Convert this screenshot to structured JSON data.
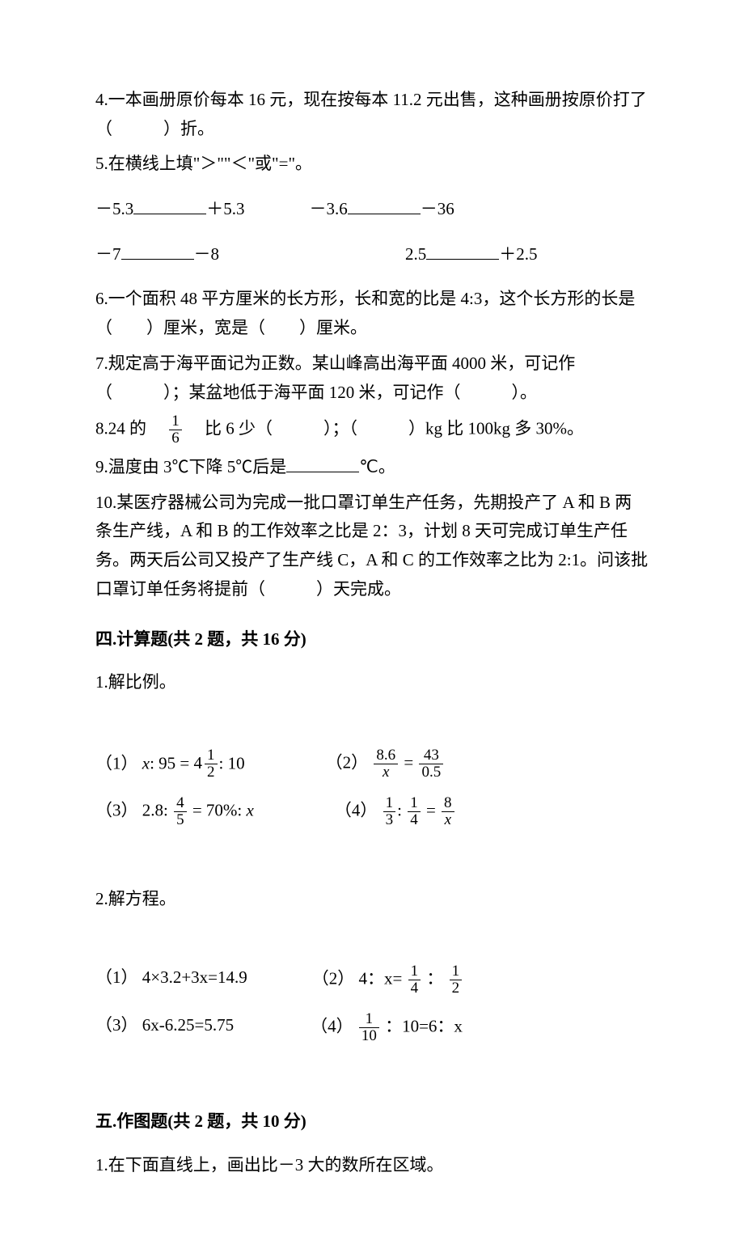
{
  "q4": "4.一本画册原价每本 16 元，现在按每本 11.2 元出售，这种画册按原价打了（　　　）折。",
  "q5_intro": "5.在横线上填\"＞\"\"＜\"或\"=\"。",
  "q5_a_l": "－5.3",
  "q5_a_r": "＋5.3",
  "q5_b_l": "－3.6",
  "q5_b_r": "－36",
  "q5_c_l": "－7",
  "q5_c_r": "－8",
  "q5_d_l": "2.5",
  "q5_d_r": "＋2.5",
  "q6": "6.一个面积 48 平方厘米的长方形，长和宽的比是 4:3，这个长方形的长是（　　）厘米，宽是（　　）厘米。",
  "q7": "7.规定高于海平面记为正数。某山峰高出海平面 4000 米，可记作（　　　）；某盆地低于海平面 120 米，可记作（　　　）。",
  "q8_a": "8.24 的　",
  "q8_frac_num": "1",
  "q8_frac_den": "6",
  "q8_b": "　比 6 少（　　　）；（　　　）kg 比 100kg 多 30%。",
  "q9_a": "9.温度由 3℃下降 5℃后是",
  "q9_b": "℃。",
  "q10": "10.某医疗器械公司为完成一批口罩订单生产任务，先期投产了 A 和 B 两条生产线，A 和 B 的工作效率之比是 2：3，计划 8 天可完成订单生产任务。两天后公司又投产了生产线 C，A 和 C 的工作效率之比为 2:1。问该批口罩订单任务将提前（　　　）天完成。",
  "sec4_title": "四.计算题(共 2 题，共 16 分)",
  "s4_q1": "1.解比例。",
  "s4_q1_1_label": "（1）",
  "s4_q1_1_expr_a": ": 95 = ",
  "s4_q1_1_mixed_whole": "4",
  "s4_q1_1_mixed_num": "1",
  "s4_q1_1_mixed_den": "2",
  "s4_q1_1_expr_b": ": 10",
  "s4_q1_2_label": "（2）",
  "s4_q1_2_f1_num": "8.6",
  "s4_q1_2_f1_den": "x",
  "s4_q1_2_eq": " = ",
  "s4_q1_2_f2_num": "43",
  "s4_q1_2_f2_den": "0.5",
  "s4_q1_3_label": "（3）",
  "s4_q1_3_a": "2.8: ",
  "s4_q1_3_fnum": "4",
  "s4_q1_3_fden": "5",
  "s4_q1_3_b": " = 70%: ",
  "s4_q1_4_label": "（4）",
  "s4_q1_4_f1n": "1",
  "s4_q1_4_f1d": "3",
  "s4_q1_4_colon": ": ",
  "s4_q1_4_f2n": "1",
  "s4_q1_4_f2d": "4",
  "s4_q1_4_eq": " = ",
  "s4_q1_4_f3n": "8",
  "s4_q1_4_f3d": "x",
  "s4_q2": "2.解方程。",
  "s4_q2_1_label": "（1）",
  "s4_q2_1_expr": "4×3.2+3x=14.9",
  "s4_q2_2_label": "（2）",
  "s4_q2_2_a": "4：x= ",
  "s4_q2_2_f1n": "1",
  "s4_q2_2_f1d": "4",
  "s4_q2_2_b": " ： ",
  "s4_q2_2_f2n": "1",
  "s4_q2_2_f2d": "2",
  "s4_q2_3_label": "（3）",
  "s4_q2_3_expr": "6x-6.25=5.75",
  "s4_q2_4_label": "（4）",
  "s4_q2_4_f1n": "1",
  "s4_q2_4_f1d": "10",
  "s4_q2_4_b": " ：10=6：x",
  "sec5_title": "五.作图题(共 2 题，共 10 分)",
  "s5_q1": "1.在下面直线上，画出比－3 大的数所在区域。"
}
